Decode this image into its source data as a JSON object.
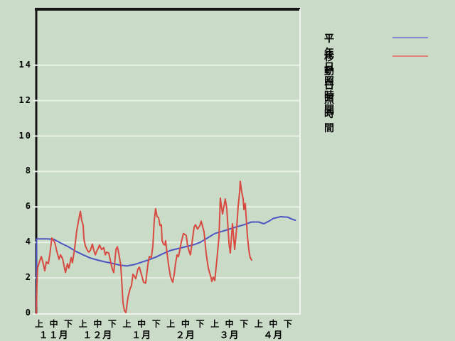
{
  "window": {
    "background_color": "#cadcc8",
    "grid_color": "#e9f1e7",
    "frame_dark_color": "#151515",
    "frame_light_color": "#f0f5ee"
  },
  "legend": [
    {
      "label": "平年日照時間",
      "color": "#8289d2"
    },
    {
      "label": "移動日照時間",
      "color": "#dd8377"
    }
  ],
  "chart_data": {
    "type": "line",
    "title": "",
    "xlabel": "",
    "ylabel": "",
    "x_unit": "ten-day period index (0 = 11月上旬, 17 = 4月下旬)",
    "y_unit": "hours",
    "ylim": [
      0,
      17
    ],
    "grid": "horizontal-only",
    "legend_position": "top-right-outside",
    "y_axis": {
      "ticks": [
        0,
        2,
        4,
        6,
        8,
        10,
        12,
        14
      ]
    },
    "x_axis": {
      "period_labels": [
        "上",
        "中",
        "下",
        "上",
        "中",
        "下",
        "上",
        "中",
        "下",
        "上",
        "中",
        "下",
        "上",
        "中",
        "下",
        "上",
        "中",
        "下"
      ],
      "months": [
        {
          "label": "１１月",
          "center_period_index": 1
        },
        {
          "label": "１２月",
          "center_period_index": 4
        },
        {
          "label": "１月",
          "center_period_index": 7
        },
        {
          "label": "２月",
          "center_period_index": 10
        },
        {
          "label": "３月",
          "center_period_index": 13
        },
        {
          "label": "４月",
          "center_period_index": 16
        }
      ]
    },
    "series": [
      {
        "name": "平年日照時間",
        "color": "#4d55c3",
        "points": [
          [
            -0.19,
            0
          ],
          [
            -0.17,
            4.2
          ],
          [
            0,
            4.2
          ],
          [
            0.5,
            4.2
          ],
          [
            1,
            4.18
          ],
          [
            1.5,
            3.95
          ],
          [
            2,
            3.75
          ],
          [
            2.5,
            3.5
          ],
          [
            3,
            3.3
          ],
          [
            3.5,
            3.12
          ],
          [
            4,
            3.0
          ],
          [
            4.5,
            2.9
          ],
          [
            5,
            2.82
          ],
          [
            5.5,
            2.72
          ],
          [
            6,
            2.67
          ],
          [
            6.5,
            2.75
          ],
          [
            7,
            2.88
          ],
          [
            7.5,
            3.02
          ],
          [
            8,
            3.18
          ],
          [
            8.5,
            3.38
          ],
          [
            9,
            3.55
          ],
          [
            9.5,
            3.65
          ],
          [
            10,
            3.75
          ],
          [
            10.5,
            3.85
          ],
          [
            11,
            4.0
          ],
          [
            11.5,
            4.25
          ],
          [
            12,
            4.5
          ],
          [
            12.5,
            4.62
          ],
          [
            13,
            4.75
          ],
          [
            13.5,
            4.88
          ],
          [
            14,
            5.0
          ],
          [
            14.5,
            5.15
          ],
          [
            15,
            5.15
          ],
          [
            15.35,
            5.05
          ],
          [
            15.7,
            5.2
          ],
          [
            16,
            5.35
          ],
          [
            16.5,
            5.45
          ],
          [
            17,
            5.42
          ],
          [
            17.25,
            5.32
          ],
          [
            17.5,
            5.25
          ]
        ]
      },
      {
        "name": "移動日照時間",
        "color": "#d84a41",
        "points": [
          [
            -0.19,
            0
          ],
          [
            -0.15,
            1.5
          ],
          [
            -0.1,
            2.55
          ],
          [
            0,
            2.85
          ],
          [
            0.15,
            3.2
          ],
          [
            0.24,
            2.95
          ],
          [
            0.39,
            2.4
          ],
          [
            0.49,
            2.9
          ],
          [
            0.63,
            2.8
          ],
          [
            0.73,
            3.3
          ],
          [
            0.87,
            4.25
          ],
          [
            1.07,
            4.0
          ],
          [
            1.21,
            3.5
          ],
          [
            1.36,
            3.05
          ],
          [
            1.46,
            3.3
          ],
          [
            1.6,
            3.1
          ],
          [
            1.8,
            2.3
          ],
          [
            1.94,
            2.8
          ],
          [
            2.04,
            2.55
          ],
          [
            2.19,
            3.15
          ],
          [
            2.28,
            2.85
          ],
          [
            2.43,
            3.65
          ],
          [
            2.57,
            4.65
          ],
          [
            2.72,
            5.35
          ],
          [
            2.82,
            5.75
          ],
          [
            2.91,
            5.25
          ],
          [
            3.01,
            4.95
          ],
          [
            3.06,
            4.2
          ],
          [
            3.16,
            3.8
          ],
          [
            3.3,
            3.55
          ],
          [
            3.4,
            3.45
          ],
          [
            3.5,
            3.55
          ],
          [
            3.64,
            3.9
          ],
          [
            3.74,
            3.55
          ],
          [
            3.84,
            3.3
          ],
          [
            3.93,
            3.5
          ],
          [
            4.03,
            3.65
          ],
          [
            4.13,
            3.85
          ],
          [
            4.27,
            3.6
          ],
          [
            4.42,
            3.7
          ],
          [
            4.52,
            3.3
          ],
          [
            4.61,
            3.45
          ],
          [
            4.76,
            3.4
          ],
          [
            4.86,
            3.0
          ],
          [
            5.0,
            2.5
          ],
          [
            5.1,
            2.3
          ],
          [
            5.25,
            3.6
          ],
          [
            5.34,
            3.75
          ],
          [
            5.44,
            3.4
          ],
          [
            5.58,
            2.7
          ],
          [
            5.73,
            0.6
          ],
          [
            5.83,
            0.15
          ],
          [
            5.93,
            0.05
          ],
          [
            6.07,
            0.9
          ],
          [
            6.22,
            1.4
          ],
          [
            6.31,
            1.55
          ],
          [
            6.41,
            2.2
          ],
          [
            6.51,
            2.1
          ],
          [
            6.6,
            1.95
          ],
          [
            6.75,
            2.5
          ],
          [
            6.85,
            2.6
          ],
          [
            6.99,
            2.2
          ],
          [
            7.14,
            1.75
          ],
          [
            7.28,
            1.7
          ],
          [
            7.43,
            2.75
          ],
          [
            7.53,
            3.2
          ],
          [
            7.67,
            3.15
          ],
          [
            7.77,
            3.8
          ],
          [
            7.87,
            5.25
          ],
          [
            7.96,
            5.9
          ],
          [
            8.06,
            5.45
          ],
          [
            8.16,
            5.4
          ],
          [
            8.26,
            4.95
          ],
          [
            8.35,
            5.0
          ],
          [
            8.4,
            4.1
          ],
          [
            8.5,
            3.9
          ],
          [
            8.6,
            3.85
          ],
          [
            8.64,
            4.1
          ],
          [
            8.74,
            3.4
          ],
          [
            8.84,
            2.75
          ],
          [
            8.98,
            2.05
          ],
          [
            9.13,
            1.75
          ],
          [
            9.23,
            2.2
          ],
          [
            9.32,
            2.8
          ],
          [
            9.42,
            3.3
          ],
          [
            9.52,
            3.2
          ],
          [
            9.62,
            3.6
          ],
          [
            9.71,
            4.0
          ],
          [
            9.86,
            4.5
          ],
          [
            10.05,
            4.4
          ],
          [
            10.15,
            3.8
          ],
          [
            10.25,
            3.5
          ],
          [
            10.34,
            3.3
          ],
          [
            10.44,
            3.95
          ],
          [
            10.59,
            4.85
          ],
          [
            10.68,
            5.0
          ],
          [
            10.83,
            4.75
          ],
          [
            10.98,
            4.95
          ],
          [
            11.07,
            5.2
          ],
          [
            11.27,
            4.6
          ],
          [
            11.41,
            3.4
          ],
          [
            11.56,
            2.55
          ],
          [
            11.75,
            2.0
          ],
          [
            11.8,
            1.8
          ],
          [
            11.9,
            2.05
          ],
          [
            12.0,
            1.85
          ],
          [
            12.14,
            3.0
          ],
          [
            12.29,
            4.35
          ],
          [
            12.38,
            6.5
          ],
          [
            12.53,
            5.6
          ],
          [
            12.72,
            6.45
          ],
          [
            12.82,
            5.9
          ],
          [
            12.97,
            3.95
          ],
          [
            13.06,
            3.4
          ],
          [
            13.21,
            5.05
          ],
          [
            13.36,
            3.6
          ],
          [
            13.5,
            4.85
          ],
          [
            13.6,
            6.05
          ],
          [
            13.7,
            6.85
          ],
          [
            13.74,
            7.45
          ],
          [
            13.84,
            6.85
          ],
          [
            13.94,
            6.45
          ],
          [
            13.99,
            5.85
          ],
          [
            14.08,
            6.2
          ],
          [
            14.18,
            5.0
          ],
          [
            14.23,
            4.35
          ],
          [
            14.33,
            3.55
          ],
          [
            14.42,
            3.15
          ],
          [
            14.52,
            3.0
          ]
        ]
      }
    ]
  }
}
